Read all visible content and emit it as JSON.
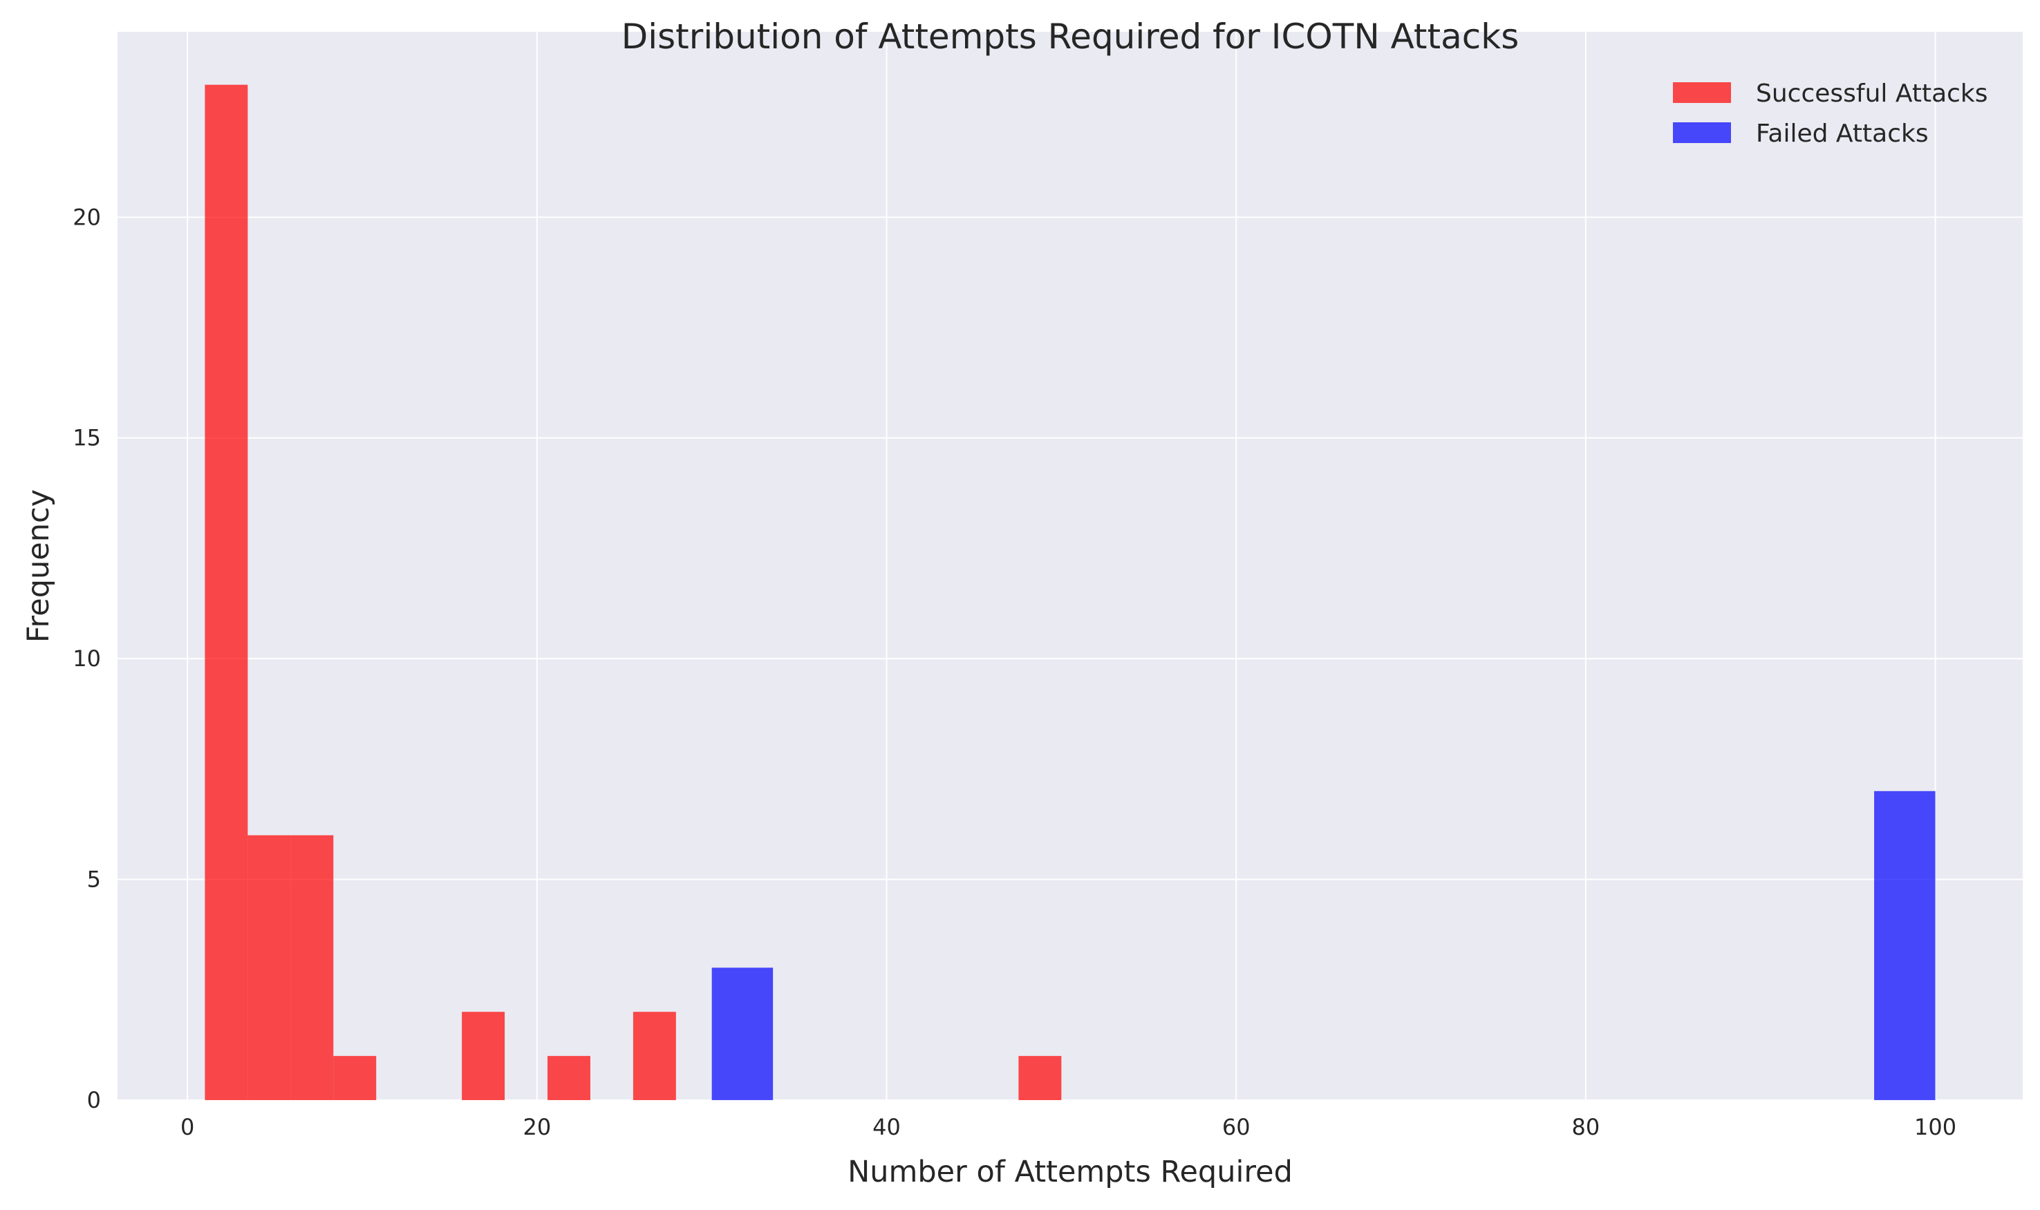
{
  "chart_data": {
    "type": "bar",
    "title": "Distribution of Attempts Required for ICOTN Attacks",
    "xlabel": "Number of Attempts Required",
    "ylabel": "Frequency",
    "xlim": [
      -4,
      105
    ],
    "ylim": [
      0,
      24.2
    ],
    "xticks": [
      0,
      20,
      40,
      60,
      80,
      100
    ],
    "yticks": [
      0,
      5,
      10,
      15,
      20
    ],
    "grid": true,
    "legend_position": "top-right",
    "series": [
      {
        "name": "Successful Attacks",
        "color": "#ff0000",
        "opacity": 0.7,
        "bins": [
          {
            "x0": 1.0,
            "x1": 3.45,
            "count": 23
          },
          {
            "x0": 3.45,
            "x1": 5.9,
            "count": 6
          },
          {
            "x0": 5.9,
            "x1": 8.35,
            "count": 6
          },
          {
            "x0": 8.35,
            "x1": 10.8,
            "count": 1
          },
          {
            "x0": 15.7,
            "x1": 18.15,
            "count": 2
          },
          {
            "x0": 20.6,
            "x1": 23.05,
            "count": 1
          },
          {
            "x0": 25.5,
            "x1": 27.95,
            "count": 2
          },
          {
            "x0": 47.55,
            "x1": 50.0,
            "count": 1
          }
        ]
      },
      {
        "name": "Failed Attacks",
        "color": "#0000ff",
        "opacity": 0.7,
        "bins": [
          {
            "x0": 30.0,
            "x1": 33.5,
            "count": 3
          },
          {
            "x0": 96.5,
            "x1": 100.0,
            "count": 7
          }
        ]
      }
    ]
  }
}
